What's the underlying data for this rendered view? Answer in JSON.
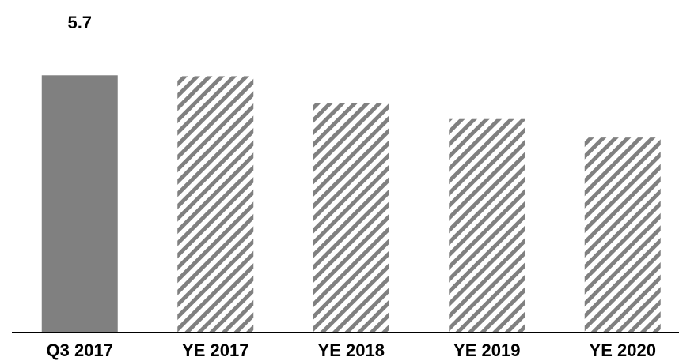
{
  "chart_data": {
    "type": "bar",
    "categories": [
      "Q3 2017",
      "YE 2017",
      "YE 2018",
      "YE 2019",
      "YE 2020"
    ],
    "values": [
      5.7,
      5.68,
      5.08,
      4.73,
      4.32
    ],
    "bar_styles": [
      "solid",
      "hatched",
      "hatched",
      "hatched",
      "hatched"
    ],
    "data_labels": [
      "5.7",
      "",
      "",
      "",
      ""
    ],
    "title": "",
    "xlabel": "",
    "ylabel": "",
    "ylim": [
      0,
      7
    ],
    "grid": false,
    "legend": "none",
    "colors": {
      "solid_bar": "#808080",
      "hatch": "#808080",
      "axis": "#000000",
      "text": "#000000"
    }
  }
}
